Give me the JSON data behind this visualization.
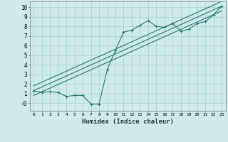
{
  "line1_x": [
    0,
    1,
    2,
    3,
    4,
    5,
    6,
    7,
    8,
    9,
    10,
    11,
    12,
    13,
    14,
    15,
    16,
    17,
    18,
    19,
    20,
    21,
    22,
    23
  ],
  "line1_y": [
    1.3,
    1.1,
    1.2,
    1.1,
    0.7,
    0.8,
    0.8,
    -0.1,
    -0.1,
    3.5,
    5.5,
    7.4,
    7.6,
    8.1,
    8.6,
    8.0,
    7.9,
    8.3,
    7.5,
    7.7,
    8.3,
    8.5,
    9.2,
    10.1
  ],
  "line2_x": [
    0,
    23
  ],
  "line2_y": [
    1.3,
    10.1
  ],
  "line3_x": [
    0,
    23
  ],
  "line3_y": [
    0.8,
    9.6
  ],
  "line4_x": [
    0,
    23
  ],
  "line4_y": [
    1.8,
    10.6
  ],
  "color": "#2a7a6e",
  "bg_color": "#ceeaea",
  "grid_color": "#aacfcf",
  "xlabel": "Humidex (Indice chaleur)",
  "xlim": [
    -0.5,
    23.5
  ],
  "ylim": [
    -0.8,
    10.6
  ],
  "xticks": [
    0,
    1,
    2,
    3,
    4,
    5,
    6,
    7,
    8,
    9,
    10,
    11,
    12,
    13,
    14,
    15,
    16,
    17,
    18,
    19,
    20,
    21,
    22,
    23
  ],
  "yticks": [
    0,
    1,
    2,
    3,
    4,
    5,
    6,
    7,
    8,
    9,
    10
  ],
  "ytick_labels": [
    "-0",
    "1",
    "2",
    "3",
    "4",
    "5",
    "6",
    "7",
    "8",
    "9",
    "10"
  ]
}
